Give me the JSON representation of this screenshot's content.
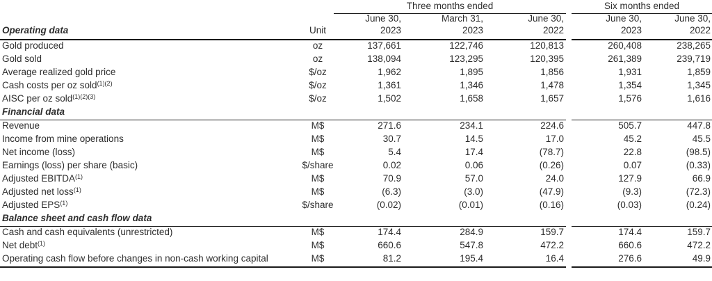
{
  "colors": {
    "text": "#2d2d2d",
    "rule": "#1a1a1a",
    "background": "#ffffff"
  },
  "header": {
    "groups": [
      {
        "label": "Three months ended",
        "span": 3
      },
      {
        "label": "Six months ended",
        "span": 2
      }
    ],
    "columns": [
      [
        "June 30,",
        "2023"
      ],
      [
        "March 31,",
        "2023"
      ],
      [
        "June 30,",
        "2022"
      ],
      [
        "June 30,",
        "2023"
      ],
      [
        "June 30,",
        "2022"
      ]
    ],
    "row_label_header": "Operating data",
    "unit_header": "Unit"
  },
  "sections": [
    {
      "title": "",
      "rows": [
        {
          "label": "Gold produced",
          "sup": "",
          "unit": "oz",
          "values": [
            "137,661",
            "122,746",
            "120,813",
            "260,408",
            "238,265"
          ]
        },
        {
          "label": "Gold sold",
          "sup": "",
          "unit": "oz",
          "values": [
            "138,094",
            "123,295",
            "120,395",
            "261,389",
            "239,719"
          ]
        },
        {
          "label": "Average realized gold price",
          "sup": "",
          "unit": "$/oz",
          "values": [
            "1,962",
            "1,895",
            "1,856",
            "1,931",
            "1,859"
          ]
        },
        {
          "label": "Cash costs per oz sold",
          "sup": "(1)(2)",
          "unit": "$/oz",
          "values": [
            "1,361",
            "1,346",
            "1,478",
            "1,354",
            "1,345"
          ]
        },
        {
          "label": "AISC per oz sold",
          "sup": "(1)(2)(3)",
          "unit": "$/oz",
          "values": [
            "1,502",
            "1,658",
            "1,657",
            "1,576",
            "1,616"
          ]
        }
      ]
    },
    {
      "title": "Financial data",
      "rows": [
        {
          "label": "Revenue",
          "sup": "",
          "unit": "M$",
          "values": [
            "271.6",
            "234.1",
            "224.6",
            "505.7",
            "447.8"
          ]
        },
        {
          "label": "Income from mine operations",
          "sup": "",
          "unit": "M$",
          "values": [
            "30.7",
            "14.5",
            "17.0",
            "45.2",
            "45.5"
          ]
        },
        {
          "label": "Net income (loss)",
          "sup": "",
          "unit": "M$",
          "values": [
            "5.4",
            "17.4",
            "(78.7)",
            "22.8",
            "(98.5)"
          ]
        },
        {
          "label": "Earnings (loss) per share (basic)",
          "sup": "",
          "unit": "$/share",
          "values": [
            "0.02",
            "0.06",
            "(0.26)",
            "0.07",
            "(0.33)"
          ]
        },
        {
          "label": "Adjusted EBITDA",
          "sup": "(1)",
          "unit": "M$",
          "values": [
            "70.9",
            "57.0",
            "24.0",
            "127.9",
            "66.9"
          ]
        },
        {
          "label": "Adjusted net loss",
          "sup": "(1)",
          "unit": "M$",
          "values": [
            "(6.3)",
            "(3.0)",
            "(47.9)",
            "(9.3)",
            "(72.3)"
          ]
        },
        {
          "label": "Adjusted EPS",
          "sup": "(1)",
          "unit": "$/share",
          "values": [
            "(0.02)",
            "(0.01)",
            "(0.16)",
            "(0.03)",
            "(0.24)"
          ]
        }
      ]
    },
    {
      "title": "Balance sheet and cash flow data",
      "rows": [
        {
          "label": "Cash and cash equivalents (unrestricted)",
          "sup": "",
          "unit": "M$",
          "values": [
            "174.4",
            "284.9",
            "159.7",
            "174.4",
            "159.7"
          ]
        },
        {
          "label": "Net debt",
          "sup": "(1)",
          "unit": "M$",
          "values": [
            "660.6",
            "547.8",
            "472.2",
            "660.6",
            "472.2"
          ]
        },
        {
          "label": "Operating cash flow before changes in non-cash working capital",
          "sup": "",
          "unit": "M$",
          "values": [
            "81.2",
            "195.4",
            "16.4",
            "276.6",
            "49.9"
          ]
        }
      ]
    }
  ]
}
